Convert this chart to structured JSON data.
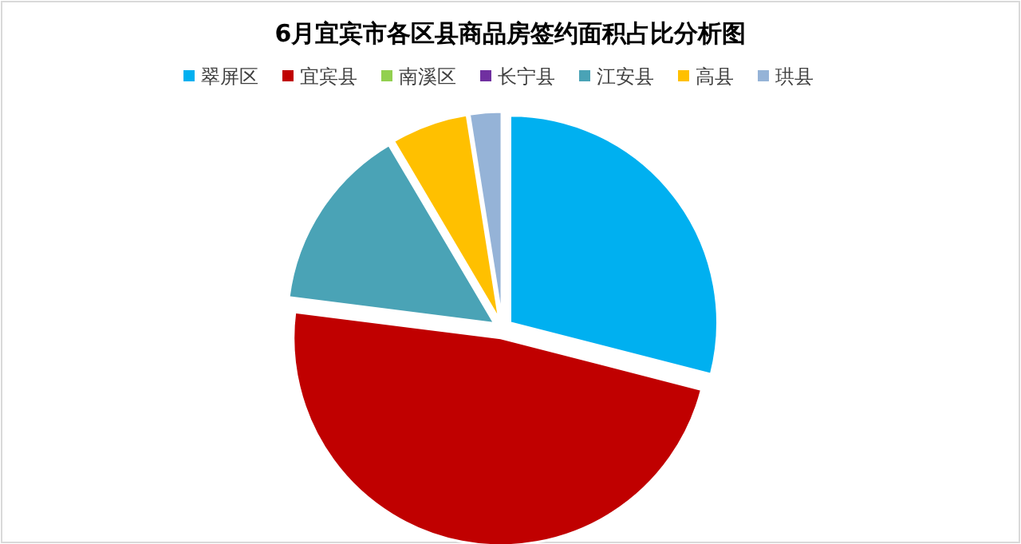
{
  "chart_data": {
    "type": "pie",
    "title": "6月宜宾市各区县商品房签约面积占比分析图",
    "categories": [
      "翠屏区",
      "宜宾县",
      "南溪区",
      "长宁县",
      "江安县",
      "高县",
      "珙县"
    ],
    "values": [
      29,
      48,
      0,
      0,
      14.5,
      6,
      2.5
    ],
    "colors": [
      "#00b0f0",
      "#c00000",
      "#92d050",
      "#7030a0",
      "#4aa3b6",
      "#ffc000",
      "#95b3d7"
    ],
    "legend": "top"
  }
}
